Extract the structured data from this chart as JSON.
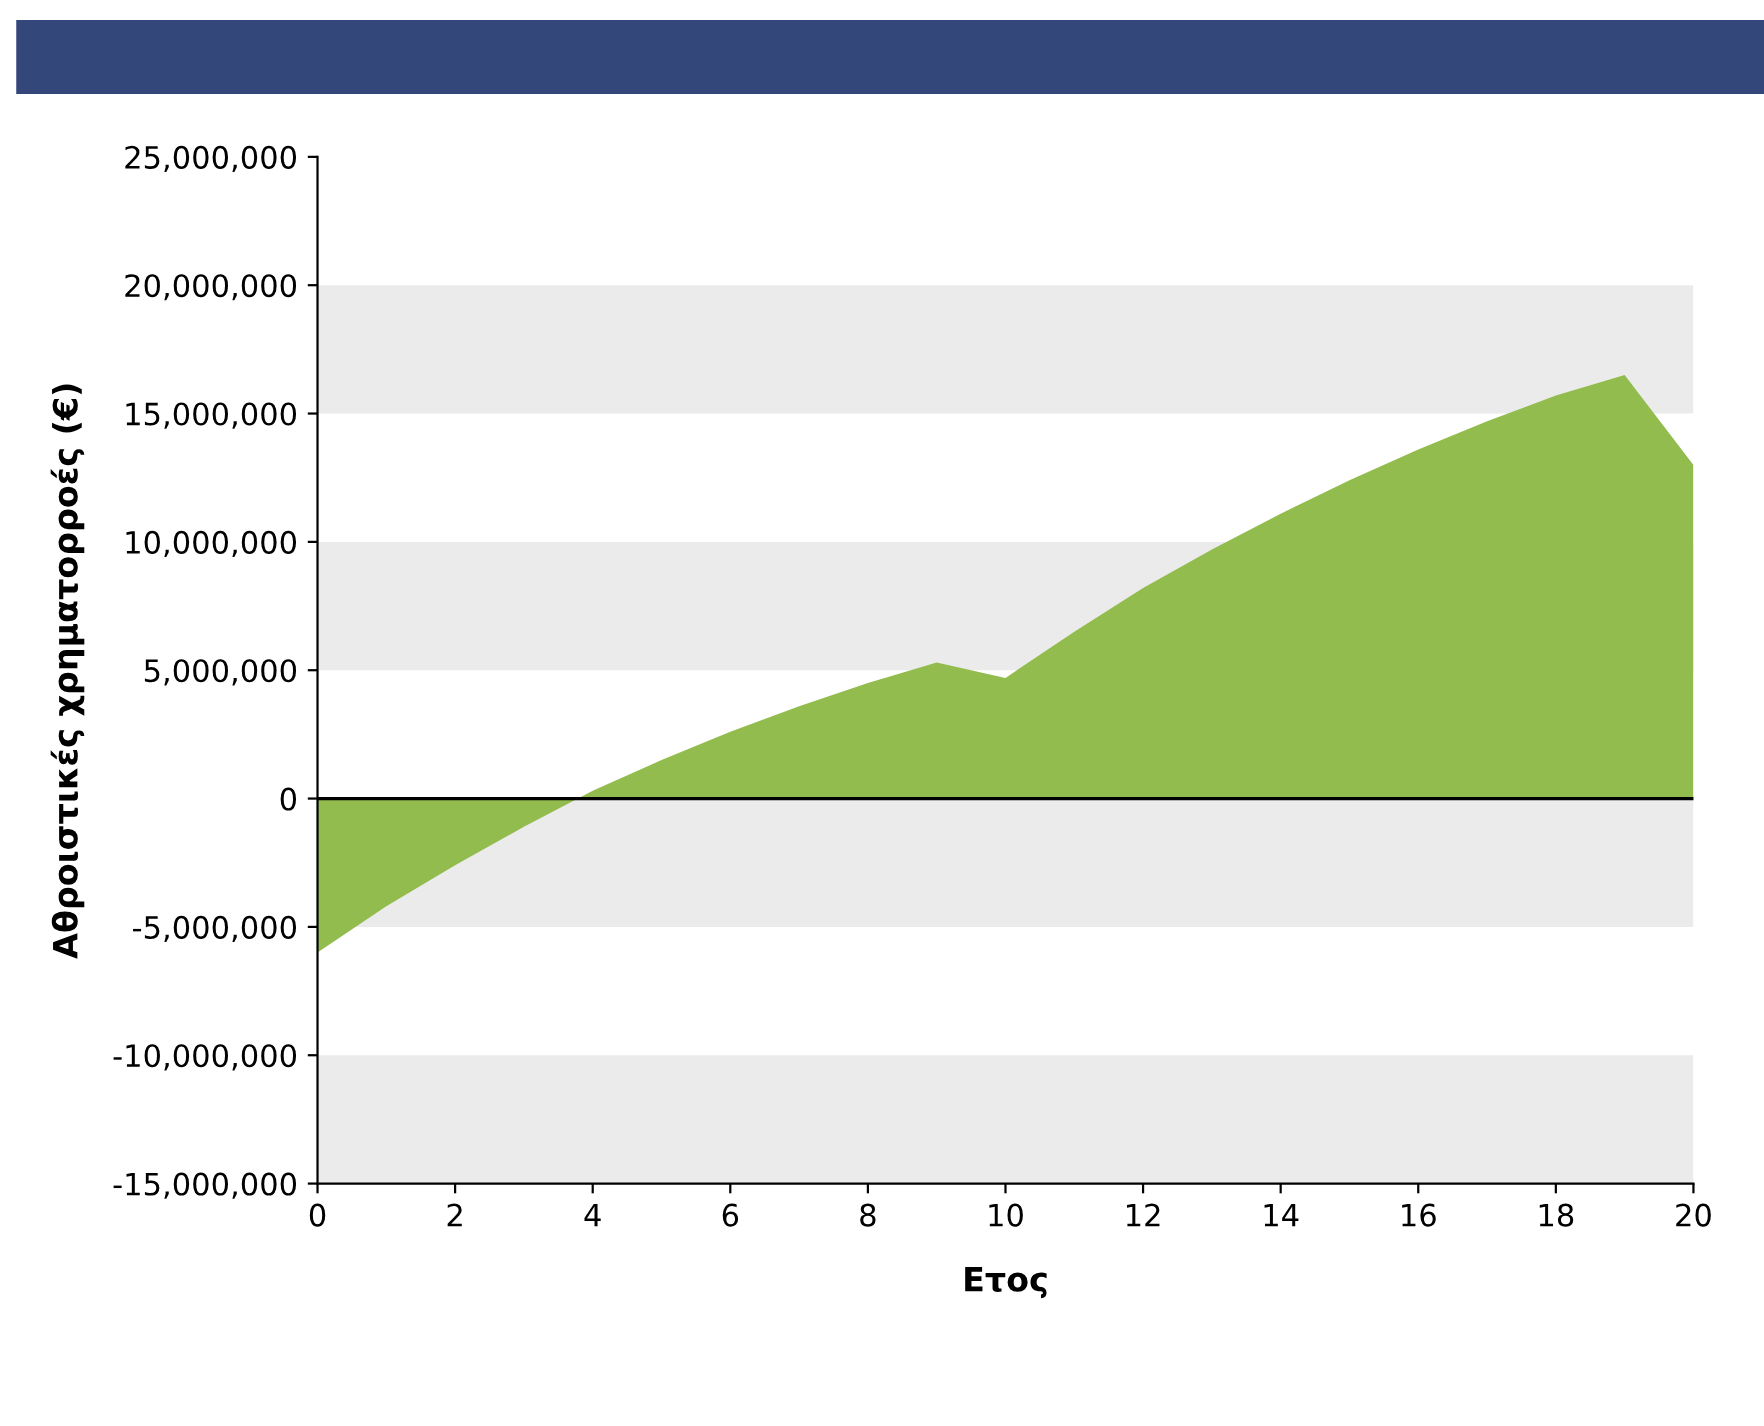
{
  "chart_data": {
    "type": "area",
    "xlabel": "Ετος",
    "ylabel": "Αθροιστικές χρηματορροές (€)",
    "x": [
      0,
      1,
      2,
      3,
      4,
      5,
      6,
      7,
      8,
      9,
      10,
      11,
      12,
      13,
      14,
      15,
      16,
      17,
      18,
      19,
      20
    ],
    "series": [
      {
        "color": "#92bd4e",
        "values": [
          -6000000,
          -4200000,
          -2600000,
          -1100000,
          300000,
          1500000,
          2600000,
          3600000,
          4500000,
          5300000,
          4700000,
          6500000,
          8200000,
          9700000,
          11100000,
          12400000,
          13600000,
          14700000,
          15700000,
          16500000,
          13000000
        ]
      }
    ],
    "xlim": [
      0,
      20
    ],
    "xticks": [
      0,
      2,
      4,
      6,
      8,
      10,
      12,
      14,
      16,
      18,
      20
    ],
    "ylim": [
      -15000000,
      25000000
    ],
    "yticks": [
      {
        "value": -15000000,
        "label": "-15,000,000"
      },
      {
        "value": -10000000,
        "label": "-10,000,000"
      },
      {
        "value": -5000000,
        "label": "-5,000,000"
      },
      {
        "value": 0,
        "label": "0"
      },
      {
        "value": 5000000,
        "label": "5,000,000"
      },
      {
        "value": 10000000,
        "label": "10,000,000"
      },
      {
        "value": 15000000,
        "label": "15,000,000"
      },
      {
        "value": 20000000,
        "label": "20,000,000"
      },
      {
        "value": 25000000,
        "label": "25,000,000"
      }
    ],
    "bands": [
      {
        "axis": "y",
        "from": 15000000,
        "to": 20000000,
        "color": "#ebebeb"
      },
      {
        "axis": "y",
        "from": 5000000,
        "to": 10000000,
        "color": "#ebebeb"
      },
      {
        "axis": "y",
        "from": -5000000,
        "to": 0,
        "color": "#ebebeb"
      },
      {
        "axis": "y",
        "from": -15000000,
        "to": -10000000,
        "color": "#ebebeb"
      }
    ],
    "ref_lines": [
      {
        "axis": "y",
        "value": 0,
        "color": "#000000"
      }
    ],
    "grid": false,
    "legend": false
  }
}
